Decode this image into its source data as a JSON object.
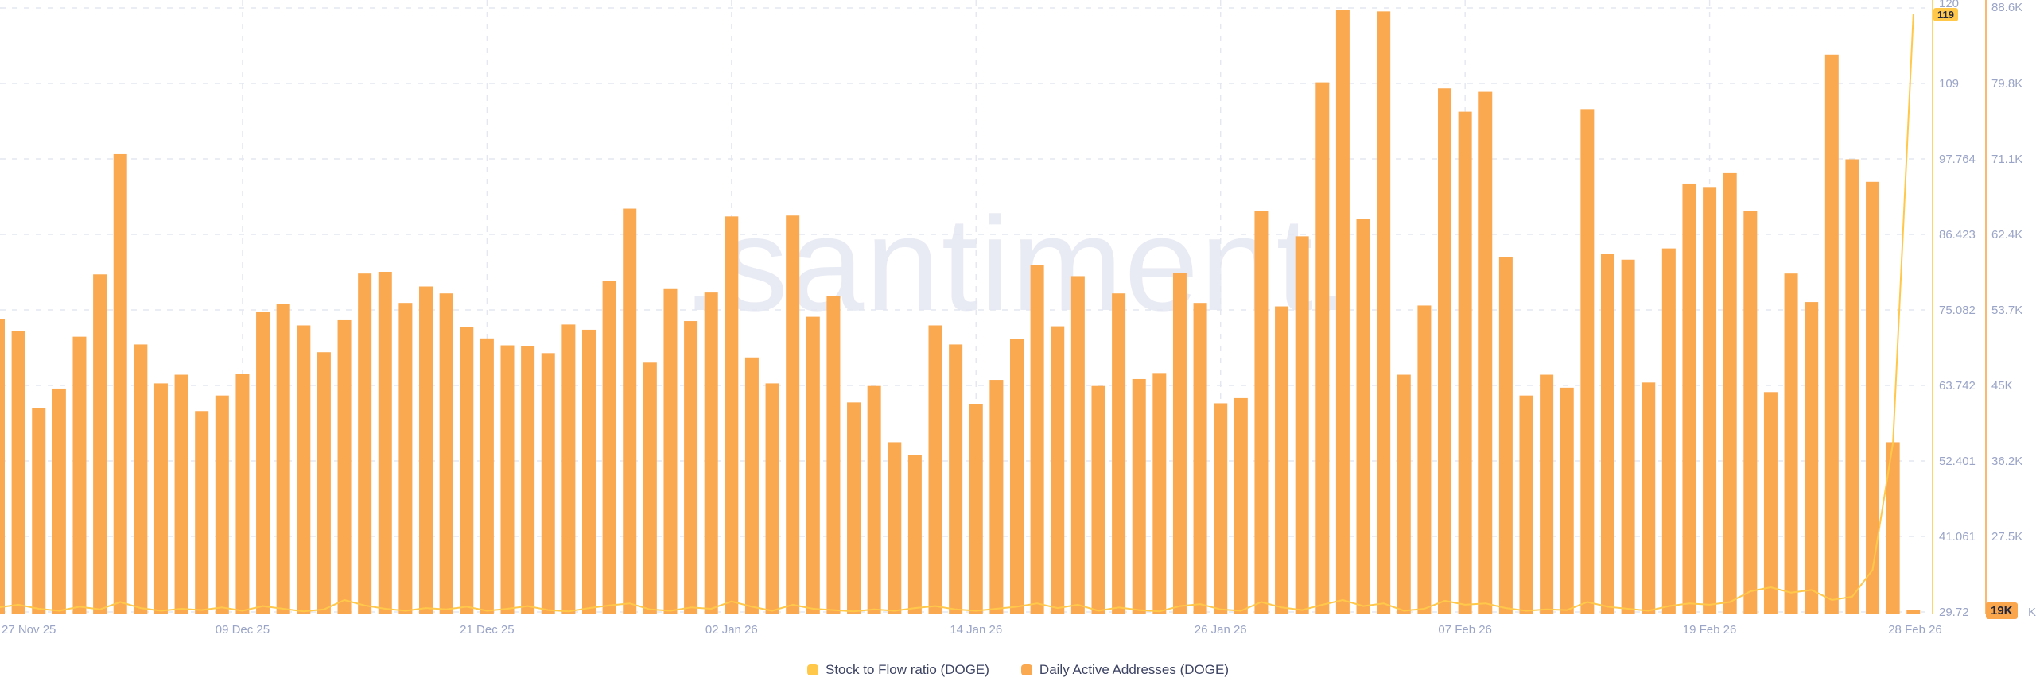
{
  "watermark": ".santiment.",
  "colors": {
    "bar": "#faa951",
    "line": "#ffc84a",
    "s2f_axis_line": "#ffc84a",
    "daa_axis_line": "#faa64d",
    "grid": "#e4e7f1",
    "axis_text": "#9aa4c6",
    "legend_text": "#3d4363",
    "badge_text": "#20263c",
    "watermark_color": "#e9ebf4",
    "background": "#ffffff"
  },
  "legend": {
    "items": [
      {
        "label": "Stock to Flow ratio (DOGE)",
        "color": "#ffc84a"
      },
      {
        "label": "Daily Active Addresses (DOGE)",
        "color": "#faa951"
      }
    ]
  },
  "right_axis_remnant": "K",
  "chart_data": {
    "type": "bar",
    "title": "",
    "xlabel": "",
    "ylabel": "",
    "grid": "dashed",
    "legend_position": "bottom-center",
    "x_tick_labels": [
      "27 Nov 25",
      "09 Dec 25",
      "21 Dec 25",
      "02 Jan 26",
      "14 Jan 26",
      "26 Jan 26",
      "07 Feb 26",
      "19 Feb 26",
      "28 Feb 26"
    ],
    "x_tick_day_indices": [
      0,
      12,
      24,
      36,
      48,
      60,
      72,
      84,
      94
    ],
    "left_axis": {
      "metric": "Stock to Flow ratio (DOGE)",
      "tick_labels": [
        "120",
        "109",
        "97.764",
        "86.423",
        "75.082",
        "63.742",
        "52.401",
        "41.061",
        "29.72"
      ],
      "min": 29.72,
      "max": 120,
      "current_value_badge": "119"
    },
    "right_axis": {
      "metric": "Daily Active Addresses (DOGE)",
      "tick_labels": [
        "88.6K",
        "79.8K",
        "71.1K",
        "62.4K",
        "53.7K",
        "45K",
        "36.2K",
        "27.5K"
      ],
      "min_k": 18.78,
      "max_k": 88.6,
      "current_value_badge": "19K"
    },
    "series": [
      {
        "name": "Stock to Flow ratio (DOGE)",
        "type": "line",
        "color": "#ffc84a",
        "values": [
          30.4,
          30.8,
          30.2,
          29.9,
          30.5,
          30.1,
          31.2,
          30.3,
          29.9,
          30.2,
          30.0,
          30.4,
          29.9,
          30.6,
          30.2,
          29.8,
          30.1,
          31.5,
          30.7,
          30.2,
          29.9,
          30.3,
          30.1,
          30.5,
          29.9,
          30.2,
          30.6,
          30.0,
          29.8,
          30.3,
          30.7,
          31.0,
          30.1,
          29.9,
          30.4,
          30.2,
          31.3,
          30.5,
          29.9,
          30.8,
          30.2,
          30.0,
          29.8,
          30.1,
          29.9,
          30.3,
          30.6,
          30.1,
          29.9,
          30.2,
          30.5,
          31.0,
          30.3,
          30.8,
          29.9,
          30.4,
          30.0,
          29.8,
          30.6,
          30.9,
          30.1,
          29.9,
          31.2,
          30.4,
          30.0,
          30.8,
          31.5,
          30.6,
          31.0,
          29.9,
          30.2,
          31.4,
          30.8,
          31.0,
          30.3,
          29.9,
          30.1,
          30.0,
          31.2,
          30.5,
          30.2,
          29.9,
          30.6,
          31.0,
          30.8,
          31.2,
          32.8,
          33.4,
          32.6,
          33.0,
          31.5,
          32.0,
          36.0,
          55.0,
          119.0
        ]
      },
      {
        "name": "Daily Active Addresses (DOGE)",
        "type": "bar",
        "color": "#faa951",
        "values_k": [
          52.6,
          51.3,
          42.3,
          44.6,
          50.6,
          57.8,
          71.7,
          49.7,
          45.2,
          46.2,
          42.0,
          43.8,
          46.3,
          53.5,
          54.4,
          51.9,
          48.8,
          52.5,
          57.9,
          58.1,
          54.5,
          56.4,
          55.6,
          51.7,
          50.4,
          49.6,
          49.5,
          48.7,
          52.0,
          51.4,
          57.0,
          65.4,
          47.6,
          56.1,
          52.4,
          55.7,
          64.5,
          48.2,
          45.2,
          64.6,
          52.9,
          55.3,
          43.0,
          44.9,
          38.4,
          36.9,
          51.9,
          49.7,
          42.8,
          45.6,
          50.3,
          58.9,
          51.8,
          57.6,
          44.9,
          55.6,
          45.7,
          46.4,
          58.0,
          54.5,
          42.9,
          43.5,
          65.1,
          54.1,
          62.2,
          80.0,
          88.4,
          64.2,
          88.2,
          46.2,
          54.2,
          79.3,
          76.6,
          78.9,
          59.8,
          43.8,
          46.2,
          44.7,
          76.9,
          60.2,
          59.5,
          45.3,
          60.8,
          68.3,
          67.9,
          69.5,
          65.1,
          44.2,
          57.9,
          54.6,
          83.2,
          71.1,
          68.5,
          38.4,
          19.0
        ]
      }
    ]
  }
}
